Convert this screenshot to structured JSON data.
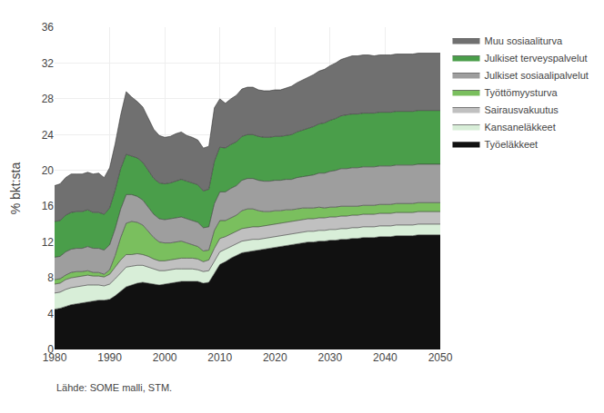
{
  "chart_data": {
    "type": "area",
    "stacked": true,
    "ylabel": "% bkt:sta",
    "annotations": [
      "Lähde: SOME malli, STM."
    ],
    "xlim": [
      1980,
      2050
    ],
    "ylim": [
      0,
      36
    ],
    "xticks": [
      1980,
      1990,
      2000,
      2010,
      2020,
      2030,
      2040,
      2050
    ],
    "yticks": [
      0,
      4,
      8,
      12,
      16,
      20,
      24,
      28,
      32,
      36
    ],
    "grid": true,
    "legend": "right",
    "x": [
      1980,
      1981,
      1982,
      1983,
      1984,
      1985,
      1986,
      1987,
      1988,
      1989,
      1990,
      1991,
      1992,
      1993,
      1994,
      1995,
      1996,
      1997,
      1998,
      1999,
      2000,
      2001,
      2002,
      2003,
      2004,
      2005,
      2006,
      2007,
      2008,
      2009,
      2010,
      2011,
      2012,
      2013,
      2014,
      2015,
      2016,
      2017,
      2018,
      2019,
      2020,
      2021,
      2022,
      2023,
      2024,
      2025,
      2026,
      2027,
      2028,
      2029,
      2030,
      2031,
      2032,
      2033,
      2034,
      2035,
      2036,
      2037,
      2038,
      2039,
      2040,
      2041,
      2042,
      2043,
      2044,
      2045,
      2046,
      2047,
      2048,
      2049,
      2050
    ],
    "series": [
      {
        "name": "Työeläkkeet",
        "color": "#111111",
        "values": [
          4.5,
          4.6,
          4.8,
          5.0,
          5.1,
          5.2,
          5.3,
          5.4,
          5.5,
          5.5,
          5.6,
          6.0,
          6.5,
          7.0,
          7.2,
          7.4,
          7.5,
          7.4,
          7.3,
          7.2,
          7.3,
          7.4,
          7.5,
          7.6,
          7.6,
          7.6,
          7.6,
          7.4,
          7.5,
          8.5,
          9.5,
          9.8,
          10.2,
          10.5,
          10.8,
          10.9,
          11.0,
          11.1,
          11.2,
          11.3,
          11.4,
          11.5,
          11.6,
          11.7,
          11.8,
          11.9,
          12.0,
          12.0,
          12.1,
          12.1,
          12.2,
          12.2,
          12.3,
          12.3,
          12.4,
          12.4,
          12.5,
          12.5,
          12.5,
          12.6,
          12.6,
          12.6,
          12.7,
          12.7,
          12.7,
          12.7,
          12.8,
          12.8,
          12.8,
          12.8,
          12.8
        ]
      },
      {
        "name": "Kansaneläkkeet",
        "color": "#d8eed8",
        "values": [
          1.8,
          1.8,
          1.9,
          1.9,
          1.9,
          1.9,
          1.9,
          1.8,
          1.7,
          1.6,
          1.7,
          1.9,
          2.1,
          2.2,
          2.1,
          2.0,
          1.9,
          1.8,
          1.7,
          1.6,
          1.5,
          1.5,
          1.5,
          1.4,
          1.4,
          1.4,
          1.3,
          1.3,
          1.3,
          1.4,
          1.4,
          1.4,
          1.3,
          1.3,
          1.3,
          1.3,
          1.3,
          1.2,
          1.2,
          1.2,
          1.2,
          1.2,
          1.2,
          1.2,
          1.2,
          1.2,
          1.2,
          1.2,
          1.2,
          1.2,
          1.2,
          1.2,
          1.2,
          1.2,
          1.2,
          1.2,
          1.2,
          1.2,
          1.2,
          1.2,
          1.2,
          1.2,
          1.2,
          1.2,
          1.2,
          1.2,
          1.2,
          1.2,
          1.2,
          1.2,
          1.2
        ]
      },
      {
        "name": "Sairausvakuutus",
        "color": "#c0c0c0",
        "values": [
          1.0,
          1.0,
          1.1,
          1.1,
          1.1,
          1.1,
          1.1,
          1.0,
          1.0,
          1.0,
          1.1,
          1.3,
          1.4,
          1.4,
          1.3,
          1.3,
          1.2,
          1.2,
          1.1,
          1.1,
          1.1,
          1.1,
          1.1,
          1.2,
          1.2,
          1.2,
          1.2,
          1.1,
          1.2,
          1.4,
          1.5,
          1.4,
          1.4,
          1.4,
          1.4,
          1.4,
          1.4,
          1.4,
          1.4,
          1.4,
          1.4,
          1.4,
          1.4,
          1.4,
          1.4,
          1.4,
          1.4,
          1.4,
          1.4,
          1.4,
          1.4,
          1.4,
          1.4,
          1.4,
          1.4,
          1.4,
          1.4,
          1.4,
          1.4,
          1.4,
          1.4,
          1.4,
          1.4,
          1.4,
          1.4,
          1.4,
          1.4,
          1.4,
          1.4,
          1.4,
          1.4
        ]
      },
      {
        "name": "Työttömyysturva",
        "color": "#7abf5e",
        "values": [
          0.5,
          0.5,
          0.5,
          0.6,
          0.6,
          0.5,
          0.5,
          0.4,
          0.4,
          0.3,
          0.5,
          1.3,
          2.5,
          3.5,
          3.7,
          3.5,
          3.3,
          2.8,
          2.4,
          2.1,
          2.0,
          1.9,
          1.9,
          1.9,
          1.7,
          1.5,
          1.4,
          1.2,
          1.1,
          2.0,
          2.0,
          1.8,
          1.8,
          1.8,
          2.0,
          2.1,
          2.0,
          1.8,
          1.6,
          1.5,
          1.5,
          1.4,
          1.4,
          1.3,
          1.3,
          1.3,
          1.2,
          1.2,
          1.2,
          1.1,
          1.1,
          1.1,
          1.1,
          1.1,
          1.0,
          1.0,
          1.0,
          1.0,
          1.0,
          1.0,
          1.0,
          1.0,
          1.0,
          1.0,
          1.0,
          1.0,
          1.0,
          1.0,
          1.0,
          1.0,
          1.0
        ]
      },
      {
        "name": "Julkiset sosiaalipalvelut",
        "color": "#9e9e9e",
        "values": [
          2.5,
          2.5,
          2.6,
          2.6,
          2.6,
          2.6,
          2.7,
          2.7,
          2.7,
          2.7,
          2.8,
          3.0,
          3.2,
          3.2,
          3.0,
          2.9,
          2.8,
          2.7,
          2.6,
          2.6,
          2.6,
          2.7,
          2.7,
          2.7,
          2.7,
          2.7,
          2.7,
          2.6,
          2.6,
          3.0,
          3.2,
          3.2,
          3.3,
          3.3,
          3.4,
          3.4,
          3.4,
          3.4,
          3.4,
          3.4,
          3.4,
          3.4,
          3.4,
          3.4,
          3.5,
          3.5,
          3.6,
          3.7,
          3.8,
          3.9,
          4.0,
          4.1,
          4.2,
          4.2,
          4.3,
          4.3,
          4.3,
          4.3,
          4.3,
          4.3,
          4.3,
          4.3,
          4.3,
          4.3,
          4.3,
          4.3,
          4.3,
          4.3,
          4.3,
          4.3,
          4.3
        ]
      },
      {
        "name": "Julkiset terveyspalvelut",
        "color": "#4a9e4a",
        "values": [
          4.0,
          4.0,
          4.1,
          4.1,
          4.1,
          4.1,
          4.1,
          4.0,
          4.0,
          4.0,
          4.1,
          4.3,
          4.5,
          4.5,
          4.3,
          4.3,
          4.2,
          4.1,
          4.0,
          4.0,
          4.0,
          4.0,
          4.1,
          4.2,
          4.2,
          4.2,
          4.2,
          4.1,
          4.2,
          4.7,
          5.0,
          4.9,
          4.9,
          4.9,
          4.9,
          4.9,
          4.9,
          4.9,
          4.9,
          4.9,
          4.9,
          4.9,
          4.9,
          5.0,
          5.1,
          5.2,
          5.3,
          5.4,
          5.5,
          5.6,
          5.7,
          5.8,
          5.9,
          6.0,
          6.0,
          6.0,
          6.0,
          6.0,
          6.0,
          6.0,
          6.0,
          6.0,
          6.0,
          6.0,
          6.0,
          6.0,
          6.0,
          6.0,
          6.0,
          6.0,
          6.0
        ]
      },
      {
        "name": "Muu sosiaaliturva",
        "color": "#707070",
        "values": [
          4.0,
          4.1,
          4.2,
          4.3,
          4.2,
          4.2,
          4.2,
          4.3,
          4.4,
          4.1,
          4.5,
          5.2,
          6.0,
          7.0,
          6.6,
          6.3,
          6.2,
          5.8,
          5.5,
          5.3,
          5.2,
          5.2,
          5.3,
          5.3,
          5.1,
          5.1,
          5.0,
          4.8,
          4.8,
          6.0,
          5.4,
          5.0,
          5.1,
          5.2,
          5.3,
          5.3,
          5.3,
          5.2,
          5.2,
          5.2,
          5.2,
          5.2,
          5.3,
          5.4,
          5.5,
          5.6,
          5.7,
          5.8,
          5.9,
          6.0,
          6.1,
          6.2,
          6.3,
          6.4,
          6.5,
          6.5,
          6.5,
          6.5,
          6.4,
          6.4,
          6.4,
          6.4,
          6.4,
          6.4,
          6.4,
          6.4,
          6.4,
          6.4,
          6.4,
          6.4,
          6.4
        ]
      }
    ]
  }
}
